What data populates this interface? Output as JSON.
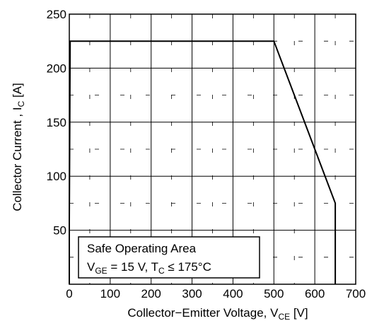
{
  "chart_data": {
    "type": "line",
    "title": "",
    "xlabel": {
      "main": "Collector−Emitter Voltage, V",
      "sub": "CE",
      "unit": " [V]"
    },
    "ylabel": {
      "main": "Collector Current , I",
      "sub": "C",
      "unit": " [A]"
    },
    "xlim": [
      0,
      700
    ],
    "ylim": [
      0,
      250
    ],
    "xticks": [
      0,
      100,
      200,
      300,
      400,
      500,
      600,
      700
    ],
    "yticks": [
      50,
      100,
      150,
      200,
      250
    ],
    "grid": true,
    "series": [
      {
        "x": [
          0,
          0,
          2,
          500,
          650,
          650
        ],
        "y": [
          0,
          58,
          225,
          225,
          75,
          0
        ]
      }
    ],
    "annotation": {
      "line1": "Safe Operating Area",
      "line2_parts": [
        "V",
        "GE",
        " = 15 V, T",
        "C",
        " ≤ 175°C"
      ]
    }
  }
}
